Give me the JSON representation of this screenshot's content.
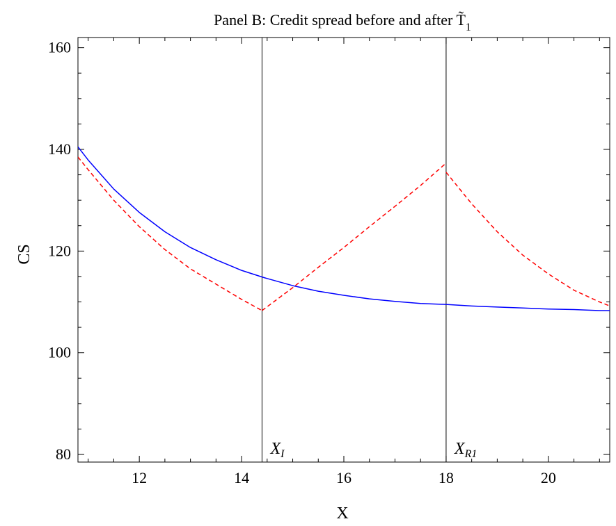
{
  "chart_data": {
    "type": "line",
    "title": "Panel B: Credit spread before and after T̃",
    "title_subscript": "1",
    "xlabel": "X",
    "ylabel": "CS",
    "xlim": [
      10.8,
      21.2
    ],
    "ylim": [
      78.5,
      162
    ],
    "x_ticks": [
      12,
      14,
      16,
      18,
      20
    ],
    "y_ticks": [
      80,
      100,
      120,
      140,
      160
    ],
    "x_minor_step": 0.5,
    "y_minor_step": 5,
    "grid": false,
    "series": [
      {
        "color": "#0000ff",
        "dash": "solid",
        "x": [
          10.8,
          11.0,
          11.5,
          12.0,
          12.5,
          13.0,
          13.5,
          14.0,
          14.4,
          14.5,
          15.0,
          15.5,
          16.0,
          16.5,
          17.0,
          17.5,
          18.0,
          18.5,
          19.0,
          19.5,
          20.0,
          20.5,
          21.0,
          21.2
        ],
        "y": [
          140.5,
          137.9,
          132.2,
          127.6,
          123.8,
          120.7,
          118.3,
          116.2,
          114.9,
          114.6,
          113.2,
          112.1,
          111.3,
          110.6,
          110.1,
          109.7,
          109.5,
          109.2,
          109.0,
          108.8,
          108.6,
          108.5,
          108.3,
          108.3
        ]
      },
      {
        "color": "#ff0000",
        "dash": "dashed",
        "segments": [
          {
            "x": [
              10.8,
              11.0,
              11.5,
              12.0,
              12.5,
              13.0,
              13.5,
              14.0,
              14.4
            ],
            "y": [
              138.5,
              136.0,
              130.0,
              124.8,
              120.3,
              116.5,
              113.5,
              110.5,
              108.3
            ]
          },
          {
            "x": [
              14.4,
              15.0,
              15.5,
              16.0,
              16.5,
              17.0,
              17.5,
              18.0
            ],
            "y": [
              108.3,
              112.8,
              116.8,
              120.7,
              124.8,
              128.8,
              132.9,
              137.3
            ]
          },
          {
            "x": [
              18.0,
              18.5,
              19.0,
              19.5,
              20.0,
              20.5,
              21.0,
              21.2
            ],
            "y": [
              135.5,
              129.3,
              123.8,
              119.2,
              115.5,
              112.3,
              110.0,
              109.2
            ]
          }
        ]
      }
    ],
    "vertical_lines": [
      {
        "x": 14.4,
        "label": "X",
        "label_sub": "I"
      },
      {
        "x": 18.0,
        "label": "X",
        "label_sub": "R1"
      }
    ]
  }
}
